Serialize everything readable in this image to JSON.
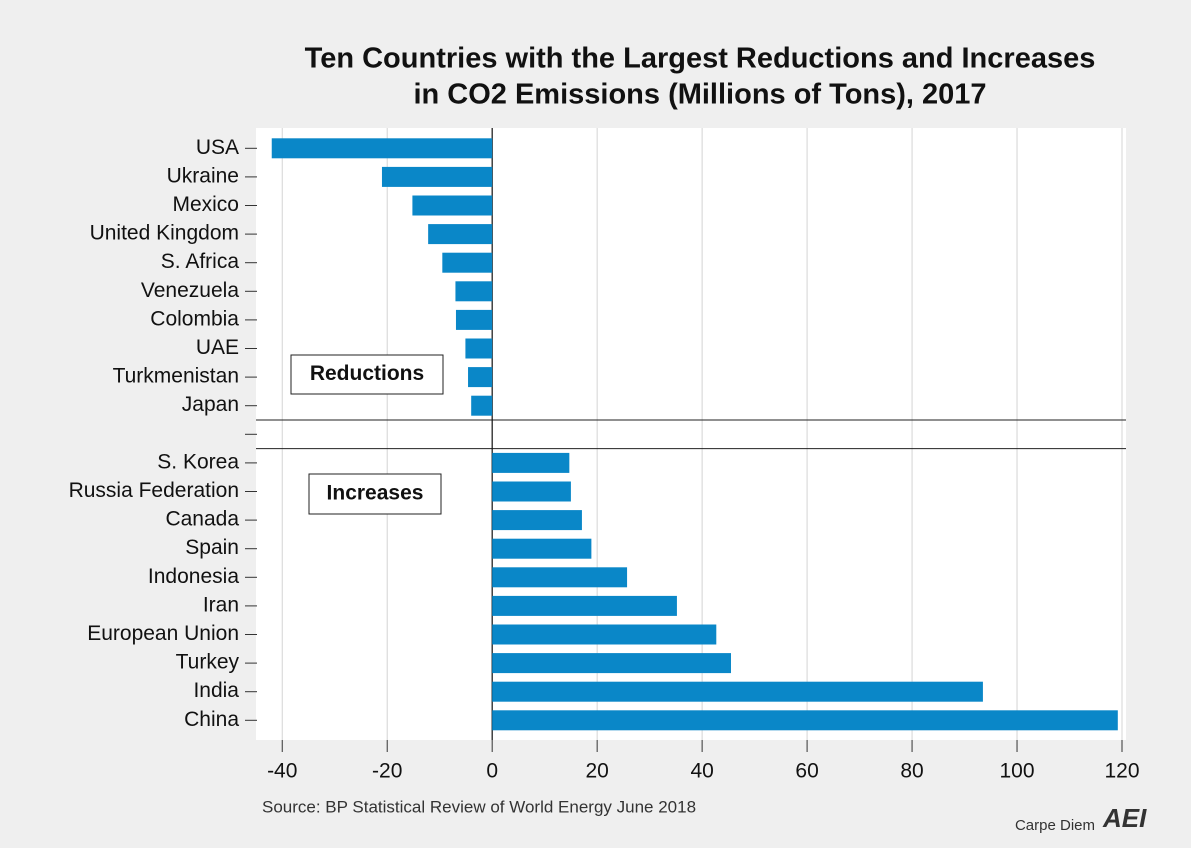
{
  "chart_data": {
    "type": "hbar",
    "title": [
      "Ten Countries with the Largest Reductions and Increases",
      "in CO2 Emissions (Millions of Tons), 2017"
    ],
    "categories": [
      "USA",
      "Ukraine",
      "Mexico",
      "United Kingdom",
      "S. Africa",
      "Venezuela",
      "Colombia",
      "UAE",
      "Turkmenistan",
      "Japan",
      null,
      "S. Korea",
      "Russia Federation",
      "Canada",
      "Spain",
      "Indonesia",
      "Iran",
      "European Union",
      "Turkey",
      "India",
      "China"
    ],
    "values": [
      -42,
      -21,
      -15.2,
      -12.2,
      -9.5,
      -7,
      -6.9,
      -5.1,
      -4.6,
      -4,
      null,
      14.7,
      15,
      17.1,
      18.9,
      25.7,
      35.2,
      42.7,
      45.5,
      93.5,
      119.2
    ],
    "color": "#0a87c8",
    "xlim": [
      -45,
      120
    ],
    "xticks": [
      -40,
      -20,
      0,
      20,
      40,
      60,
      80,
      100,
      120
    ],
    "grid": true,
    "annotations": [
      "Reductions",
      "Increases"
    ],
    "source": "Source: BP Statistical Review of World Energy June 2018",
    "brand": "Carpe Diem",
    "logo": "AEI"
  }
}
